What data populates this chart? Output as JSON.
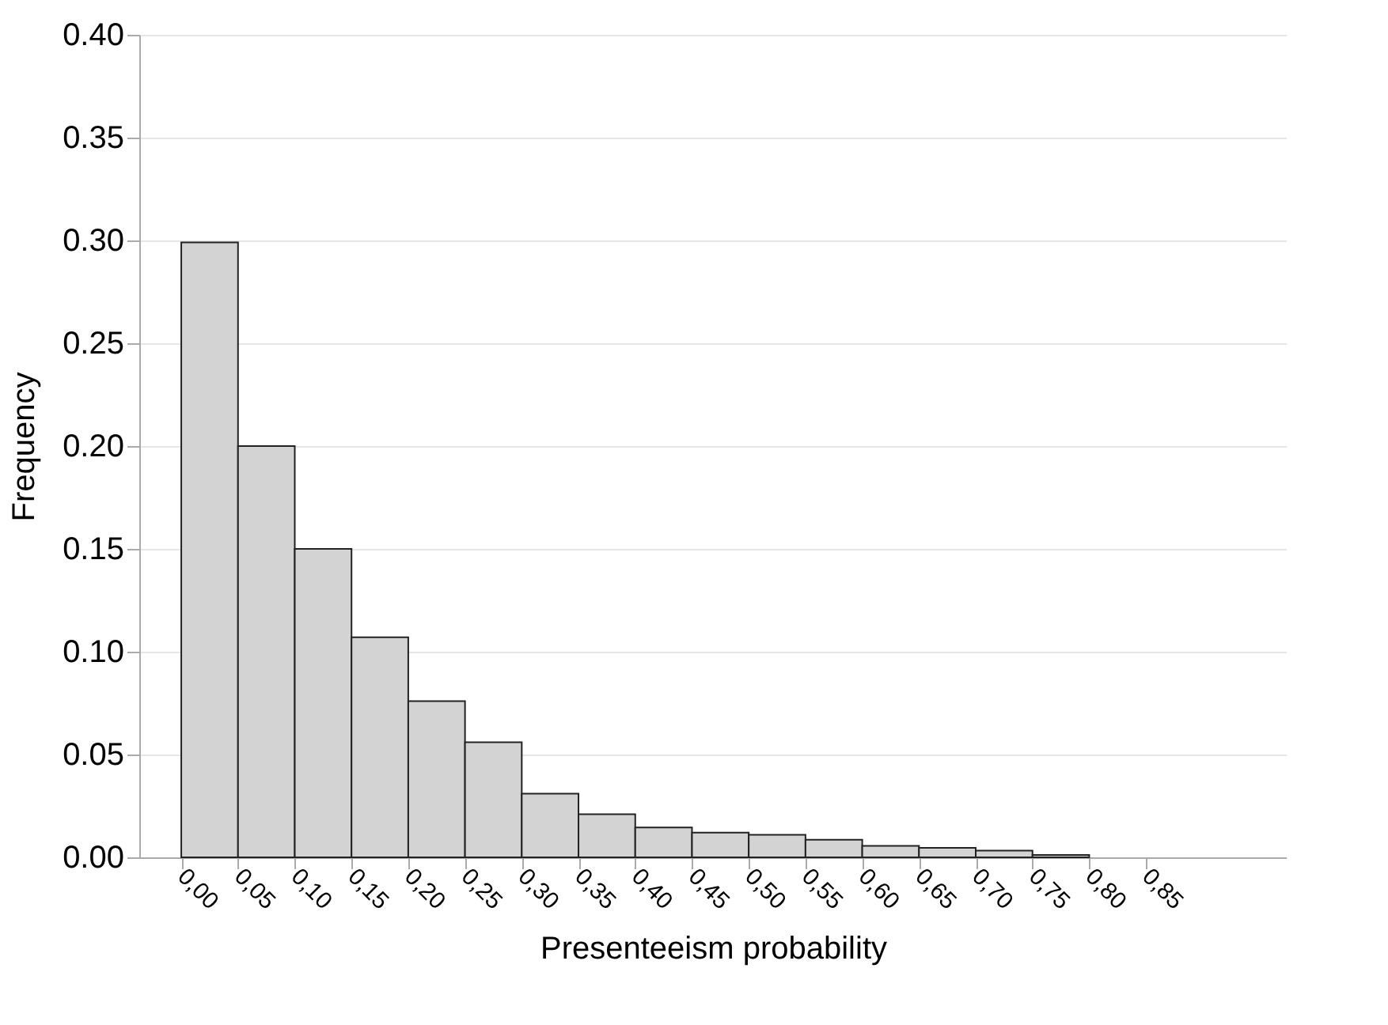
{
  "chart_data": {
    "type": "histogram",
    "xlabel": "Presenteeism probability",
    "ylabel": "Frequency",
    "bins": [
      0.0,
      0.05,
      0.1,
      0.15,
      0.2,
      0.25,
      0.3,
      0.35,
      0.4,
      0.45,
      0.5,
      0.55,
      0.6,
      0.65,
      0.7,
      0.75,
      0.8
    ],
    "values": [
      0.299,
      0.2,
      0.15,
      0.107,
      0.076,
      0.056,
      0.031,
      0.021,
      0.0145,
      0.012,
      0.011,
      0.0086,
      0.0056,
      0.0046,
      0.0033,
      0.0012
    ],
    "color": "#d3d3d3",
    "xlim": [
      -0.037,
      0.974
    ],
    "xticks": [
      {
        "value": 0.0,
        "label": "0,00"
      },
      {
        "value": 0.05,
        "label": "0,05"
      },
      {
        "value": 0.1,
        "label": "0,10"
      },
      {
        "value": 0.15,
        "label": "0,15"
      },
      {
        "value": 0.2,
        "label": "0,20"
      },
      {
        "value": 0.25,
        "label": "0,25"
      },
      {
        "value": 0.3,
        "label": "0,30"
      },
      {
        "value": 0.35,
        "label": "0,35"
      },
      {
        "value": 0.4,
        "label": "0,40"
      },
      {
        "value": 0.45,
        "label": "0,45"
      },
      {
        "value": 0.5,
        "label": "0,50"
      },
      {
        "value": 0.55,
        "label": "0,55"
      },
      {
        "value": 0.6,
        "label": "0,60"
      },
      {
        "value": 0.65,
        "label": "0,65"
      },
      {
        "value": 0.7,
        "label": "0,70"
      },
      {
        "value": 0.75,
        "label": "0,75"
      },
      {
        "value": 0.8,
        "label": "0,80"
      },
      {
        "value": 0.85,
        "label": "0,85"
      }
    ],
    "ylim": [
      0,
      0.4
    ],
    "yticks": [
      {
        "value": 0.0,
        "label": "0.00"
      },
      {
        "value": 0.05,
        "label": "0.05"
      },
      {
        "value": 0.1,
        "label": "0.10"
      },
      {
        "value": 0.15,
        "label": "0.15"
      },
      {
        "value": 0.2,
        "label": "0.20"
      },
      {
        "value": 0.25,
        "label": "0.25"
      },
      {
        "value": 0.3,
        "label": "0.30"
      },
      {
        "value": 0.35,
        "label": "0.35"
      },
      {
        "value": 0.4,
        "label": "0.40"
      }
    ],
    "grid": "y",
    "legend": false
  }
}
